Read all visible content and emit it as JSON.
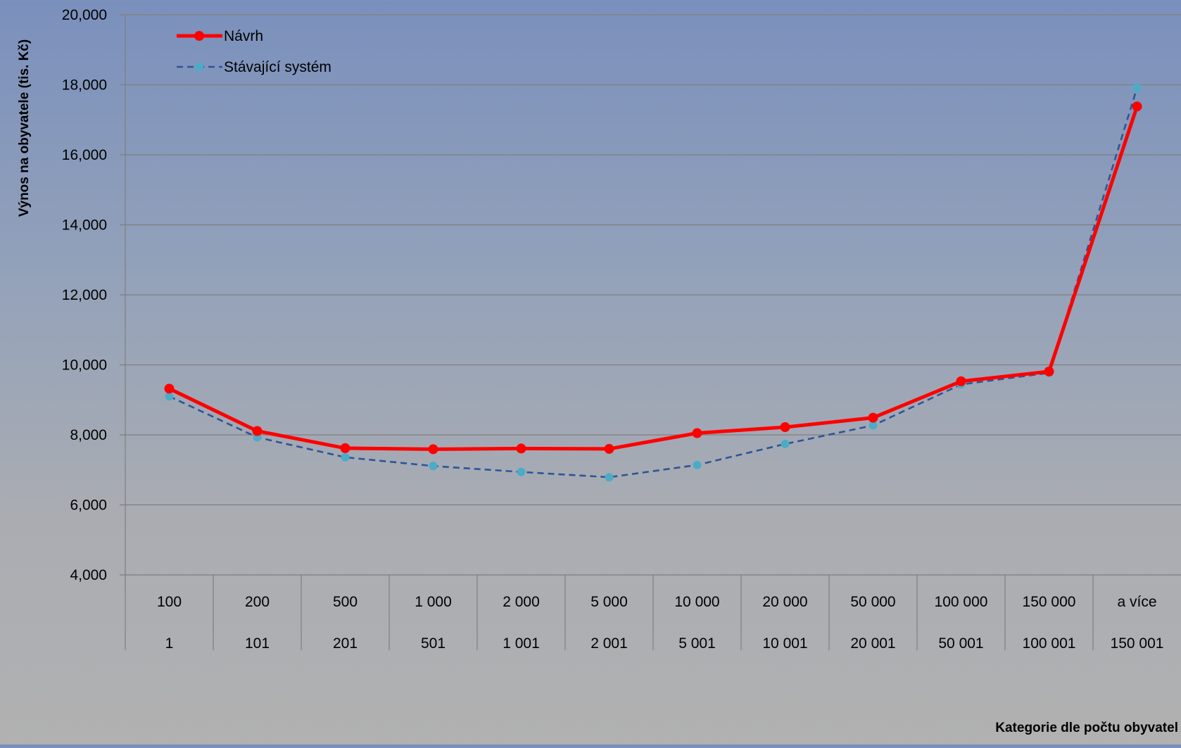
{
  "chart_data": {
    "type": "line",
    "title": "",
    "ylabel": "Výnos na obyvatele (tis. Kč)",
    "xlabel": "Kategorie dle počtu obyvatel",
    "ylim": [
      4000,
      20000
    ],
    "yticks": [
      4000,
      6000,
      8000,
      10000,
      12000,
      14000,
      16000,
      18000,
      20000
    ],
    "ytick_labels": [
      "4,000",
      "6,000",
      "8,000",
      "10,000",
      "12,000",
      "14,000",
      "16,000",
      "18,000",
      "20,000"
    ],
    "categories_upper": [
      "100",
      "200",
      "500",
      "1 000",
      "2 000",
      "5 000",
      "10 000",
      "20 000",
      "50 000",
      "100 000",
      "150 000",
      "a více"
    ],
    "categories_lower": [
      "1",
      "101",
      "201",
      "501",
      "1 001",
      "2 001",
      "5 001",
      "10 001",
      "20 001",
      "50 001",
      "100 001",
      "150 001"
    ],
    "grid": true,
    "legend_position": "top-left",
    "series": [
      {
        "name": "Návrh",
        "color": "#ff0000",
        "style": "solid",
        "values": [
          9320,
          8110,
          7620,
          7590,
          7610,
          7600,
          8050,
          8220,
          8490,
          9530,
          9810,
          17380
        ]
      },
      {
        "name": "Stávající systém",
        "color": "#2e5595",
        "marker_color": "#4bacc6",
        "style": "dashed",
        "values": [
          9100,
          7930,
          7360,
          7110,
          6940,
          6790,
          7140,
          7740,
          8270,
          9440,
          9770,
          17910
        ]
      }
    ]
  }
}
